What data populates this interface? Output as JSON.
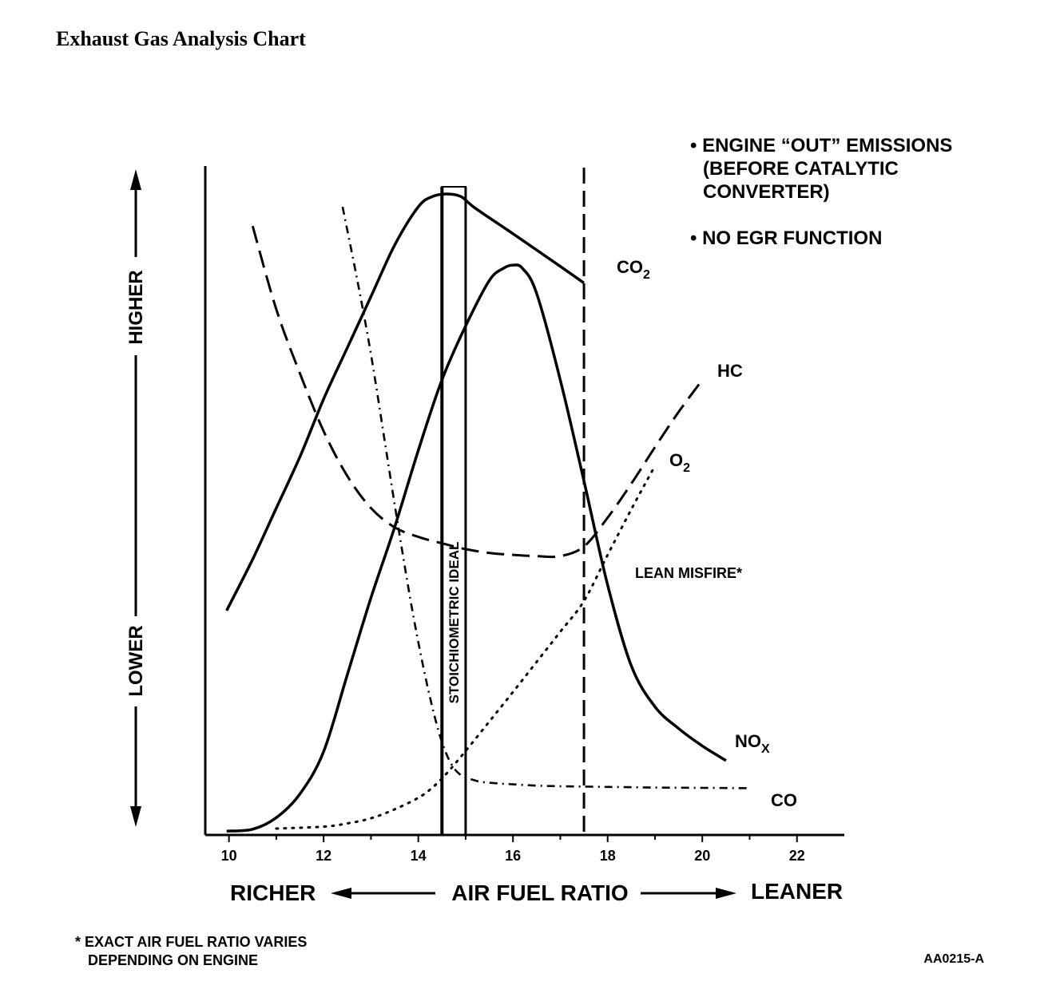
{
  "page": {
    "title": "Exhaust Gas Analysis Chart"
  },
  "chart_data": {
    "type": "line",
    "title": "",
    "xlabel": "AIR FUEL RATIO",
    "x_left_label": "RICHER",
    "x_right_label": "LEANER",
    "y_high_label": "HIGHER",
    "y_low_label": "LOWER",
    "xlim": [
      9.5,
      23
    ],
    "ylim": [
      0,
      100
    ],
    "x_ticks": [
      10,
      12,
      14,
      16,
      18,
      20,
      22
    ],
    "x_tick_labels": [
      "10",
      "12",
      "14",
      "16",
      "18",
      "20",
      "22"
    ],
    "stoichiometric_band": {
      "x_start": 14.5,
      "x_end": 15.0,
      "label": "STOICHIOMETRIC IDEAL"
    },
    "lean_misfire_line": {
      "x": 17.5,
      "label": "LEAN MISFIRE*"
    },
    "notes": [
      "• ENGINE “OUT” EMISSIONS",
      "(BEFORE CATALYTIC",
      "CONVERTER)",
      "• NO EGR FUNCTION"
    ],
    "footnote_lines": [
      "* EXACT AIR FUEL RATIO VARIES",
      "DEPENDING ON ENGINE"
    ],
    "figure_code": "AA0215-A",
    "series": [
      {
        "name": "CO2",
        "label_main": "CO",
        "label_sub": "2",
        "style": "solid",
        "x": [
          9.95,
          10.5,
          11.0,
          11.5,
          12.0,
          12.5,
          13.0,
          13.5,
          14.0,
          14.3,
          14.6,
          14.9,
          15.2,
          16.0,
          17.0,
          17.5
        ],
        "y": [
          35,
          43,
          51,
          59,
          68,
          76,
          84,
          92,
          98,
          99.6,
          100,
          99.6,
          97.8,
          93.8,
          88.7,
          86.1
        ]
      },
      {
        "name": "HC",
        "label_main": "HC",
        "label_sub": "",
        "style": "dash",
        "x": [
          10.5,
          11.0,
          11.5,
          12.0,
          12.5,
          13.0,
          13.5,
          14.0,
          14.5,
          15.0,
          15.5,
          16.0,
          16.5,
          17.0,
          17.5,
          18.0,
          18.5,
          19.0,
          19.5,
          20.0
        ],
        "y": [
          95,
          82,
          72,
          63,
          56,
          51,
          48,
          46.5,
          45.5,
          44.6,
          44.0,
          43.7,
          43.5,
          43.5,
          45.0,
          49.5,
          54.8,
          60.5,
          66.0,
          71.0
        ]
      },
      {
        "name": "O2",
        "label_main": "O",
        "label_sub": "2",
        "style": "dot",
        "x": [
          11.0,
          12.0,
          12.5,
          13.0,
          13.5,
          14.0,
          14.3,
          14.6,
          15.0,
          15.5,
          16.0,
          16.5,
          17.0,
          17.5,
          18.0,
          18.5,
          19.0
        ],
        "y": [
          1.0,
          1.3,
          1.8,
          2.6,
          4.0,
          5.8,
          7.4,
          9.6,
          13.1,
          17.7,
          22.3,
          27.0,
          31.7,
          36.5,
          43.7,
          50.8,
          57.6
        ]
      },
      {
        "name": "NOx",
        "label_main": "NO",
        "label_sub": "X",
        "style": "solid",
        "x": [
          9.95,
          10.5,
          11.0,
          11.5,
          12.0,
          12.5,
          13.0,
          13.5,
          14.0,
          14.5,
          15.0,
          15.5,
          15.8,
          16.0,
          16.2,
          16.5,
          17.0,
          17.5,
          18.0,
          18.5,
          19.0,
          19.5,
          20.0,
          20.5
        ],
        "y": [
          0.6,
          0.9,
          2.7,
          6.4,
          13.0,
          25.0,
          37.0,
          48.0,
          60.0,
          71.0,
          79.4,
          86.5,
          88.4,
          88.9,
          88.4,
          84.5,
          71.0,
          55.2,
          39.0,
          26.4,
          20.0,
          16.6,
          13.9,
          11.6
        ]
      },
      {
        "name": "CO",
        "label_main": "CO",
        "label_sub": "",
        "style": "dashdot",
        "x": [
          12.4,
          12.7,
          13.0,
          13.3,
          13.6,
          13.9,
          14.2,
          14.5,
          14.8,
          15.2,
          15.6,
          16.0,
          16.5,
          17.0,
          18.0,
          19.0,
          20.0,
          21.0
        ],
        "y": [
          98,
          87,
          75,
          61,
          47,
          34,
          23,
          14.5,
          10.0,
          8.5,
          8.1,
          7.9,
          7.7,
          7.6,
          7.5,
          7.4,
          7.35,
          7.3
        ]
      }
    ]
  }
}
